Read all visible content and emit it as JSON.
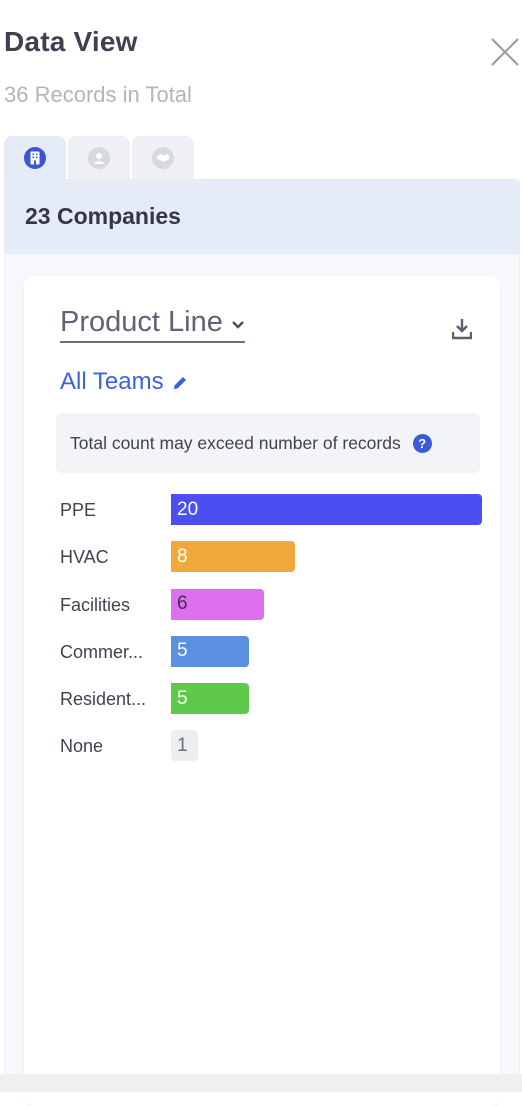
{
  "header": {
    "title": "Data View",
    "subtitle": "36 Records in Total",
    "close_icon": "close-icon"
  },
  "tabs": [
    {
      "icon": "building-icon",
      "active": true
    },
    {
      "icon": "person-icon",
      "active": false
    },
    {
      "icon": "handshake-icon",
      "active": false
    }
  ],
  "panel": {
    "title": "23 Companies"
  },
  "card": {
    "dimension_label": "Product Line",
    "team_label": "All Teams",
    "notice": "Total count may exceed number of records",
    "download_icon": "download-icon"
  },
  "chart_data": {
    "type": "bar",
    "orientation": "horizontal",
    "max": 20,
    "bars": [
      {
        "label": "PPE",
        "value": 20,
        "display": "20",
        "color": "#4b4ef2",
        "text_color": "#ffffff"
      },
      {
        "label": "HVAC",
        "value": 8,
        "display": "8",
        "color": "#f2a93b",
        "text_color": "#ffffff"
      },
      {
        "label": "Facilities",
        "value": 6,
        "display": "6",
        "color": "#de70f0",
        "text_color": "#3f2d4a"
      },
      {
        "label": "Commer...",
        "value": 5,
        "display": "5",
        "color": "#5b8fe0",
        "text_color": "#ffffff"
      },
      {
        "label": "Resident...",
        "value": 5,
        "display": "5",
        "color": "#5fc94b",
        "text_color": "#ffffff"
      },
      {
        "label": "None",
        "value": 1,
        "display": "1",
        "color": "#eceef1",
        "text_color": "#6b6f7a"
      }
    ]
  }
}
